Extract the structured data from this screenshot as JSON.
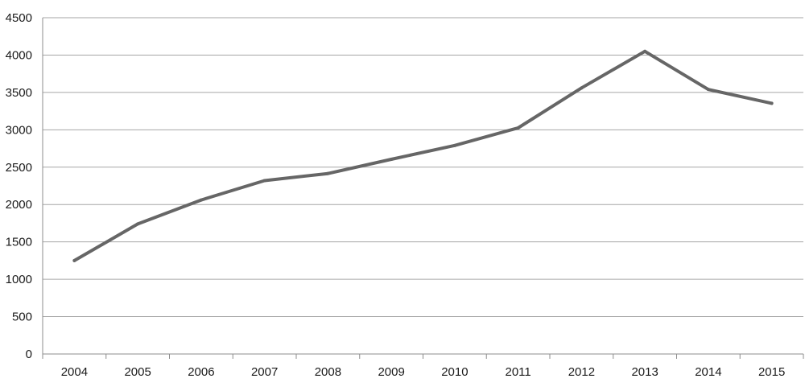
{
  "chart_data": {
    "type": "line",
    "categories": [
      "2004",
      "2005",
      "2006",
      "2007",
      "2008",
      "2009",
      "2010",
      "2011",
      "2012",
      "2013",
      "2014",
      "2015"
    ],
    "series": [
      {
        "values": [
          1250,
          1740,
          2060,
          2320,
          2415,
          2605,
          2790,
          3025,
          3560,
          4050,
          3540,
          3355
        ],
        "color": "#666666"
      }
    ],
    "y_ticks": [
      "0",
      "500",
      "1000",
      "1500",
      "2000",
      "2500",
      "3000",
      "3500",
      "4000",
      "4500"
    ],
    "ylim": [
      0,
      4500
    ],
    "grid": true,
    "legend": "none",
    "title": "",
    "xlabel": "",
    "ylabel": ""
  }
}
